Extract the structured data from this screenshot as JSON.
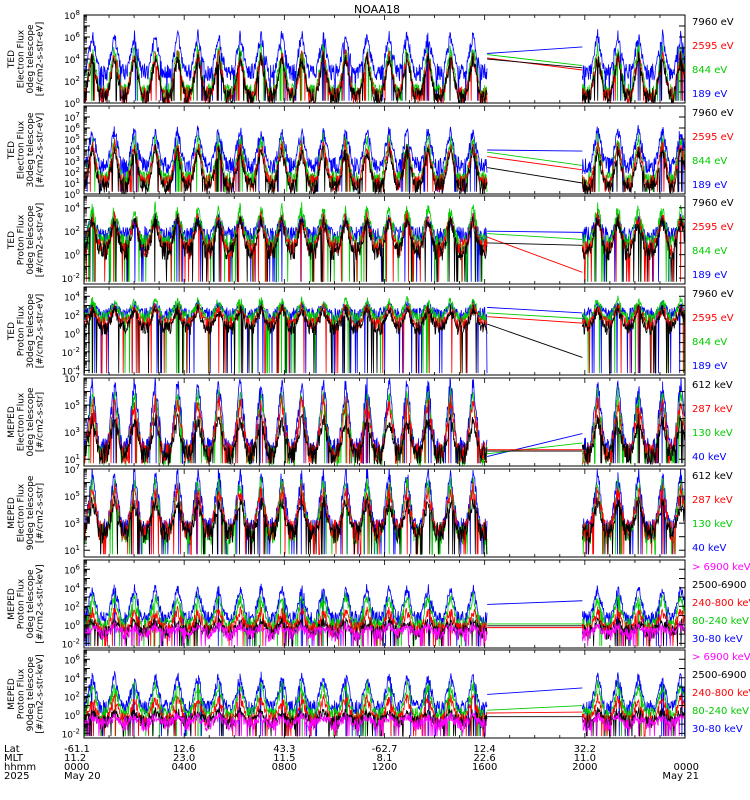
{
  "chart_data": {
    "type": "line",
    "title": "NOAA18",
    "x_axis": {
      "date_start": "2025 May 20",
      "date_end": "May 21",
      "rows": [
        {
          "label": "Lat",
          "values": [
            "-61.1",
            "12.6",
            "43.3",
            "-62.7",
            "12.4",
            "32.2",
            ""
          ]
        },
        {
          "label": "MLT",
          "values": [
            "11.2",
            "23.0",
            "11.5",
            "8.1",
            "22.6",
            "11.0",
            ""
          ]
        },
        {
          "label": "hhmm",
          "values": [
            "0000",
            "0400",
            "0800",
            "1200",
            "1600",
            "2000",
            "0000"
          ]
        },
        {
          "label": "2025",
          "values": [
            "May 20",
            "",
            "",
            "",
            "",
            "",
            "May 21"
          ]
        }
      ],
      "range_hours": [
        0,
        24
      ],
      "data_gap_hours": [
        16.1,
        19.9
      ]
    },
    "panels": [
      {
        "ylabel": [
          "TED",
          "Electron Flux",
          "0deg telescope",
          "[#/cm2-s-str-eV]"
        ],
        "ytick_exponents": [
          0,
          2,
          4,
          6,
          8
        ],
        "yrange_exponent": [
          0,
          8
        ],
        "series": [
          {
            "name": "7960 eV",
            "color": "#000000",
            "base": 0.6,
            "peak": 4.2,
            "gap_start": 4.0,
            "gap_end": 3.2
          },
          {
            "name": "2595 eV",
            "color": "#ff0000",
            "base": 0.7,
            "peak": 4.4,
            "gap_start": 4.1,
            "gap_end": 3.0
          },
          {
            "name": "844 eV",
            "color": "#00cc00",
            "base": 1.0,
            "peak": 5.0,
            "gap_start": 4.4,
            "gap_end": 3.4
          },
          {
            "name": "189 eV",
            "color": "#0000ff",
            "base": 2.8,
            "peak": 6.2,
            "gap_start": 4.5,
            "gap_end": 5.1
          }
        ]
      },
      {
        "ylabel": [
          "TED",
          "Electron Flux",
          "30deg telescope",
          "[#/cm2-s-str-eV]"
        ],
        "ytick_exponents": [
          0,
          1,
          2,
          3,
          4,
          5,
          6,
          7
        ],
        "yrange_exponent": [
          0,
          8
        ],
        "series": [
          {
            "name": "7960 eV",
            "color": "#000000",
            "base": 0.7,
            "peak": 4.0,
            "gap_start": 2.4,
            "gap_end": 1.0
          },
          {
            "name": "2595 eV",
            "color": "#ff0000",
            "base": 1.0,
            "peak": 4.5,
            "gap_start": 3.4,
            "gap_end": 2.2
          },
          {
            "name": "844 eV",
            "color": "#00cc00",
            "base": 1.3,
            "peak": 5.0,
            "gap_start": 3.8,
            "gap_end": 2.6
          },
          {
            "name": "189 eV",
            "color": "#0000ff",
            "base": 2.6,
            "peak": 5.8,
            "gap_start": 4.0,
            "gap_end": 3.9
          }
        ]
      },
      {
        "ylabel": [
          "TED",
          "Proton Flux",
          "0deg telescope",
          "[#/cm2-s-str-eV]"
        ],
        "ytick_exponents": [
          -2,
          0,
          2,
          4
        ],
        "yrange_exponent": [
          -2.5,
          5
        ],
        "series": [
          {
            "name": "7960 eV",
            "color": "#000000",
            "base": 0.3,
            "peak": 3.0,
            "gap_start": 1.0,
            "gap_end": 0.8
          },
          {
            "name": "2595 eV",
            "color": "#ff0000",
            "base": 0.6,
            "peak": 3.2,
            "gap_start": 1.5,
            "gap_end": -1.5
          },
          {
            "name": "844 eV",
            "color": "#00cc00",
            "base": 1.0,
            "peak": 4.0,
            "gap_start": 1.8,
            "gap_end": 1.3
          },
          {
            "name": "189 eV",
            "color": "#0000ff",
            "base": 1.6,
            "peak": 3.0,
            "gap_start": 2.0,
            "gap_end": 1.9
          }
        ]
      },
      {
        "ylabel": [
          "TED",
          "Proton Flux",
          "30deg telescope",
          "[#/cm2-s-str-eV]"
        ],
        "ytick_exponents": [
          -4,
          -2,
          0,
          2,
          4
        ],
        "yrange_exponent": [
          -4.5,
          5
        ],
        "series": [
          {
            "name": "7960 eV",
            "color": "#000000",
            "base": 0.6,
            "peak": 2.6,
            "gap_start": 1.0,
            "gap_end": -2.6
          },
          {
            "name": "2595 eV",
            "color": "#ff0000",
            "base": 1.0,
            "peak": 2.8,
            "gap_start": 1.8,
            "gap_end": 1.1
          },
          {
            "name": "844 eV",
            "color": "#00cc00",
            "base": 1.6,
            "peak": 3.5,
            "gap_start": 2.2,
            "gap_end": 1.6
          },
          {
            "name": "189 eV",
            "color": "#0000ff",
            "base": 2.0,
            "peak": 3.0,
            "gap_start": 2.8,
            "gap_end": 2.2
          }
        ]
      },
      {
        "ylabel": [
          "MEPED",
          "Electron Flux",
          "0deg telescope",
          "[#/cm2-s-str]"
        ],
        "ytick_exponents": [
          1,
          3,
          5,
          7
        ],
        "yrange_exponent": [
          0.5,
          7
        ],
        "series": [
          {
            "name": "612 keV",
            "color": "#000000",
            "base": 1.4,
            "peak": 4.0,
            "gap_start": 1.6,
            "gap_end": 1.6
          },
          {
            "name": "287 keV",
            "color": "#ff0000",
            "base": 1.5,
            "peak": 5.3,
            "gap_start": 1.7,
            "gap_end": 1.7
          },
          {
            "name": "130 keV",
            "color": "#00cc00",
            "base": 1.3,
            "peak": 5.8,
            "gap_start": 1.4,
            "gap_end": 2.2
          },
          {
            "name": "40 keV",
            "color": "#0000ff",
            "base": 1.8,
            "peak": 6.8,
            "gap_start": 1.2,
            "gap_end": 2.9
          }
        ]
      },
      {
        "ylabel": [
          "MEPED",
          "Electron Flux",
          "90deg telescope",
          "[#/cm2-s-str]"
        ],
        "ytick_exponents": [
          1,
          3,
          5,
          7
        ],
        "yrange_exponent": [
          0.5,
          7
        ],
        "series": [
          {
            "name": "612 keV",
            "color": "#000000",
            "base": 2.3,
            "peak": 4.6,
            "gap_start": null,
            "gap_end": null
          },
          {
            "name": "287 keV",
            "color": "#ff0000",
            "base": 2.5,
            "peak": 5.5,
            "gap_start": null,
            "gap_end": null
          },
          {
            "name": "130 keV",
            "color": "#00cc00",
            "base": 2.2,
            "peak": 6.0,
            "gap_start": null,
            "gap_end": null
          },
          {
            "name": "40 keV",
            "color": "#0000ff",
            "base": 2.6,
            "peak": 6.8,
            "gap_start": null,
            "gap_end": null
          }
        ]
      },
      {
        "ylabel": [
          "MEPED",
          "Proton Flux",
          "0deg telescope",
          "[#/cm2-s-str-keV]"
        ],
        "ytick_exponents": [
          -2,
          0,
          2,
          4,
          6
        ],
        "yrange_exponent": [
          -2.5,
          7
        ],
        "series": [
          {
            "name": "> 6900 keV",
            "color": "#ff00ff",
            "base": -1.0,
            "peak": -0.2,
            "gap_start": null,
            "gap_end": null
          },
          {
            "name": "2500-6900",
            "color": "#000000",
            "base": -0.8,
            "peak": 0.3,
            "gap_start": -0.1,
            "gap_end": -0.1
          },
          {
            "name": "240-800 keV",
            "color": "#ff0000",
            "base": -0.5,
            "peak": 1.5,
            "gap_start": -0.3,
            "gap_end": -0.3
          },
          {
            "name": "80-240 keV",
            "color": "#00cc00",
            "base": 0.0,
            "peak": 3.0,
            "gap_start": 0.1,
            "gap_end": 0.1
          },
          {
            "name": "30-80 keV",
            "color": "#0000ff",
            "base": 0.7,
            "peak": 4.0,
            "gap_start": 2.2,
            "gap_end": 2.6
          }
        ]
      },
      {
        "ylabel": [
          "MEPED",
          "Proton Flux",
          "90deg telescope",
          "[#/cm2-s-str-keV]"
        ],
        "ytick_exponents": [
          -2,
          0,
          2,
          4,
          6
        ],
        "yrange_exponent": [
          -2.5,
          7
        ],
        "series": [
          {
            "name": "> 6900 keV",
            "color": "#ff00ff",
            "base": -1.0,
            "peak": -0.2,
            "gap_start": null,
            "gap_end": null
          },
          {
            "name": "2500-6900",
            "color": "#000000",
            "base": -0.8,
            "peak": 0.3,
            "gap_start": -0.2,
            "gap_end": -0.2
          },
          {
            "name": "240-800 keV",
            "color": "#ff0000",
            "base": -0.5,
            "peak": 1.8,
            "gap_start": 0.2,
            "gap_end": 0.3
          },
          {
            "name": "80-240 keV",
            "color": "#00cc00",
            "base": 0.1,
            "peak": 3.2,
            "gap_start": 0.5,
            "gap_end": 1.0
          },
          {
            "name": "30-80 keV",
            "color": "#0000ff",
            "base": 0.8,
            "peak": 4.2,
            "gap_start": 2.2,
            "gap_end": 2.9
          }
        ]
      }
    ],
    "grid": false,
    "legend": "right"
  }
}
